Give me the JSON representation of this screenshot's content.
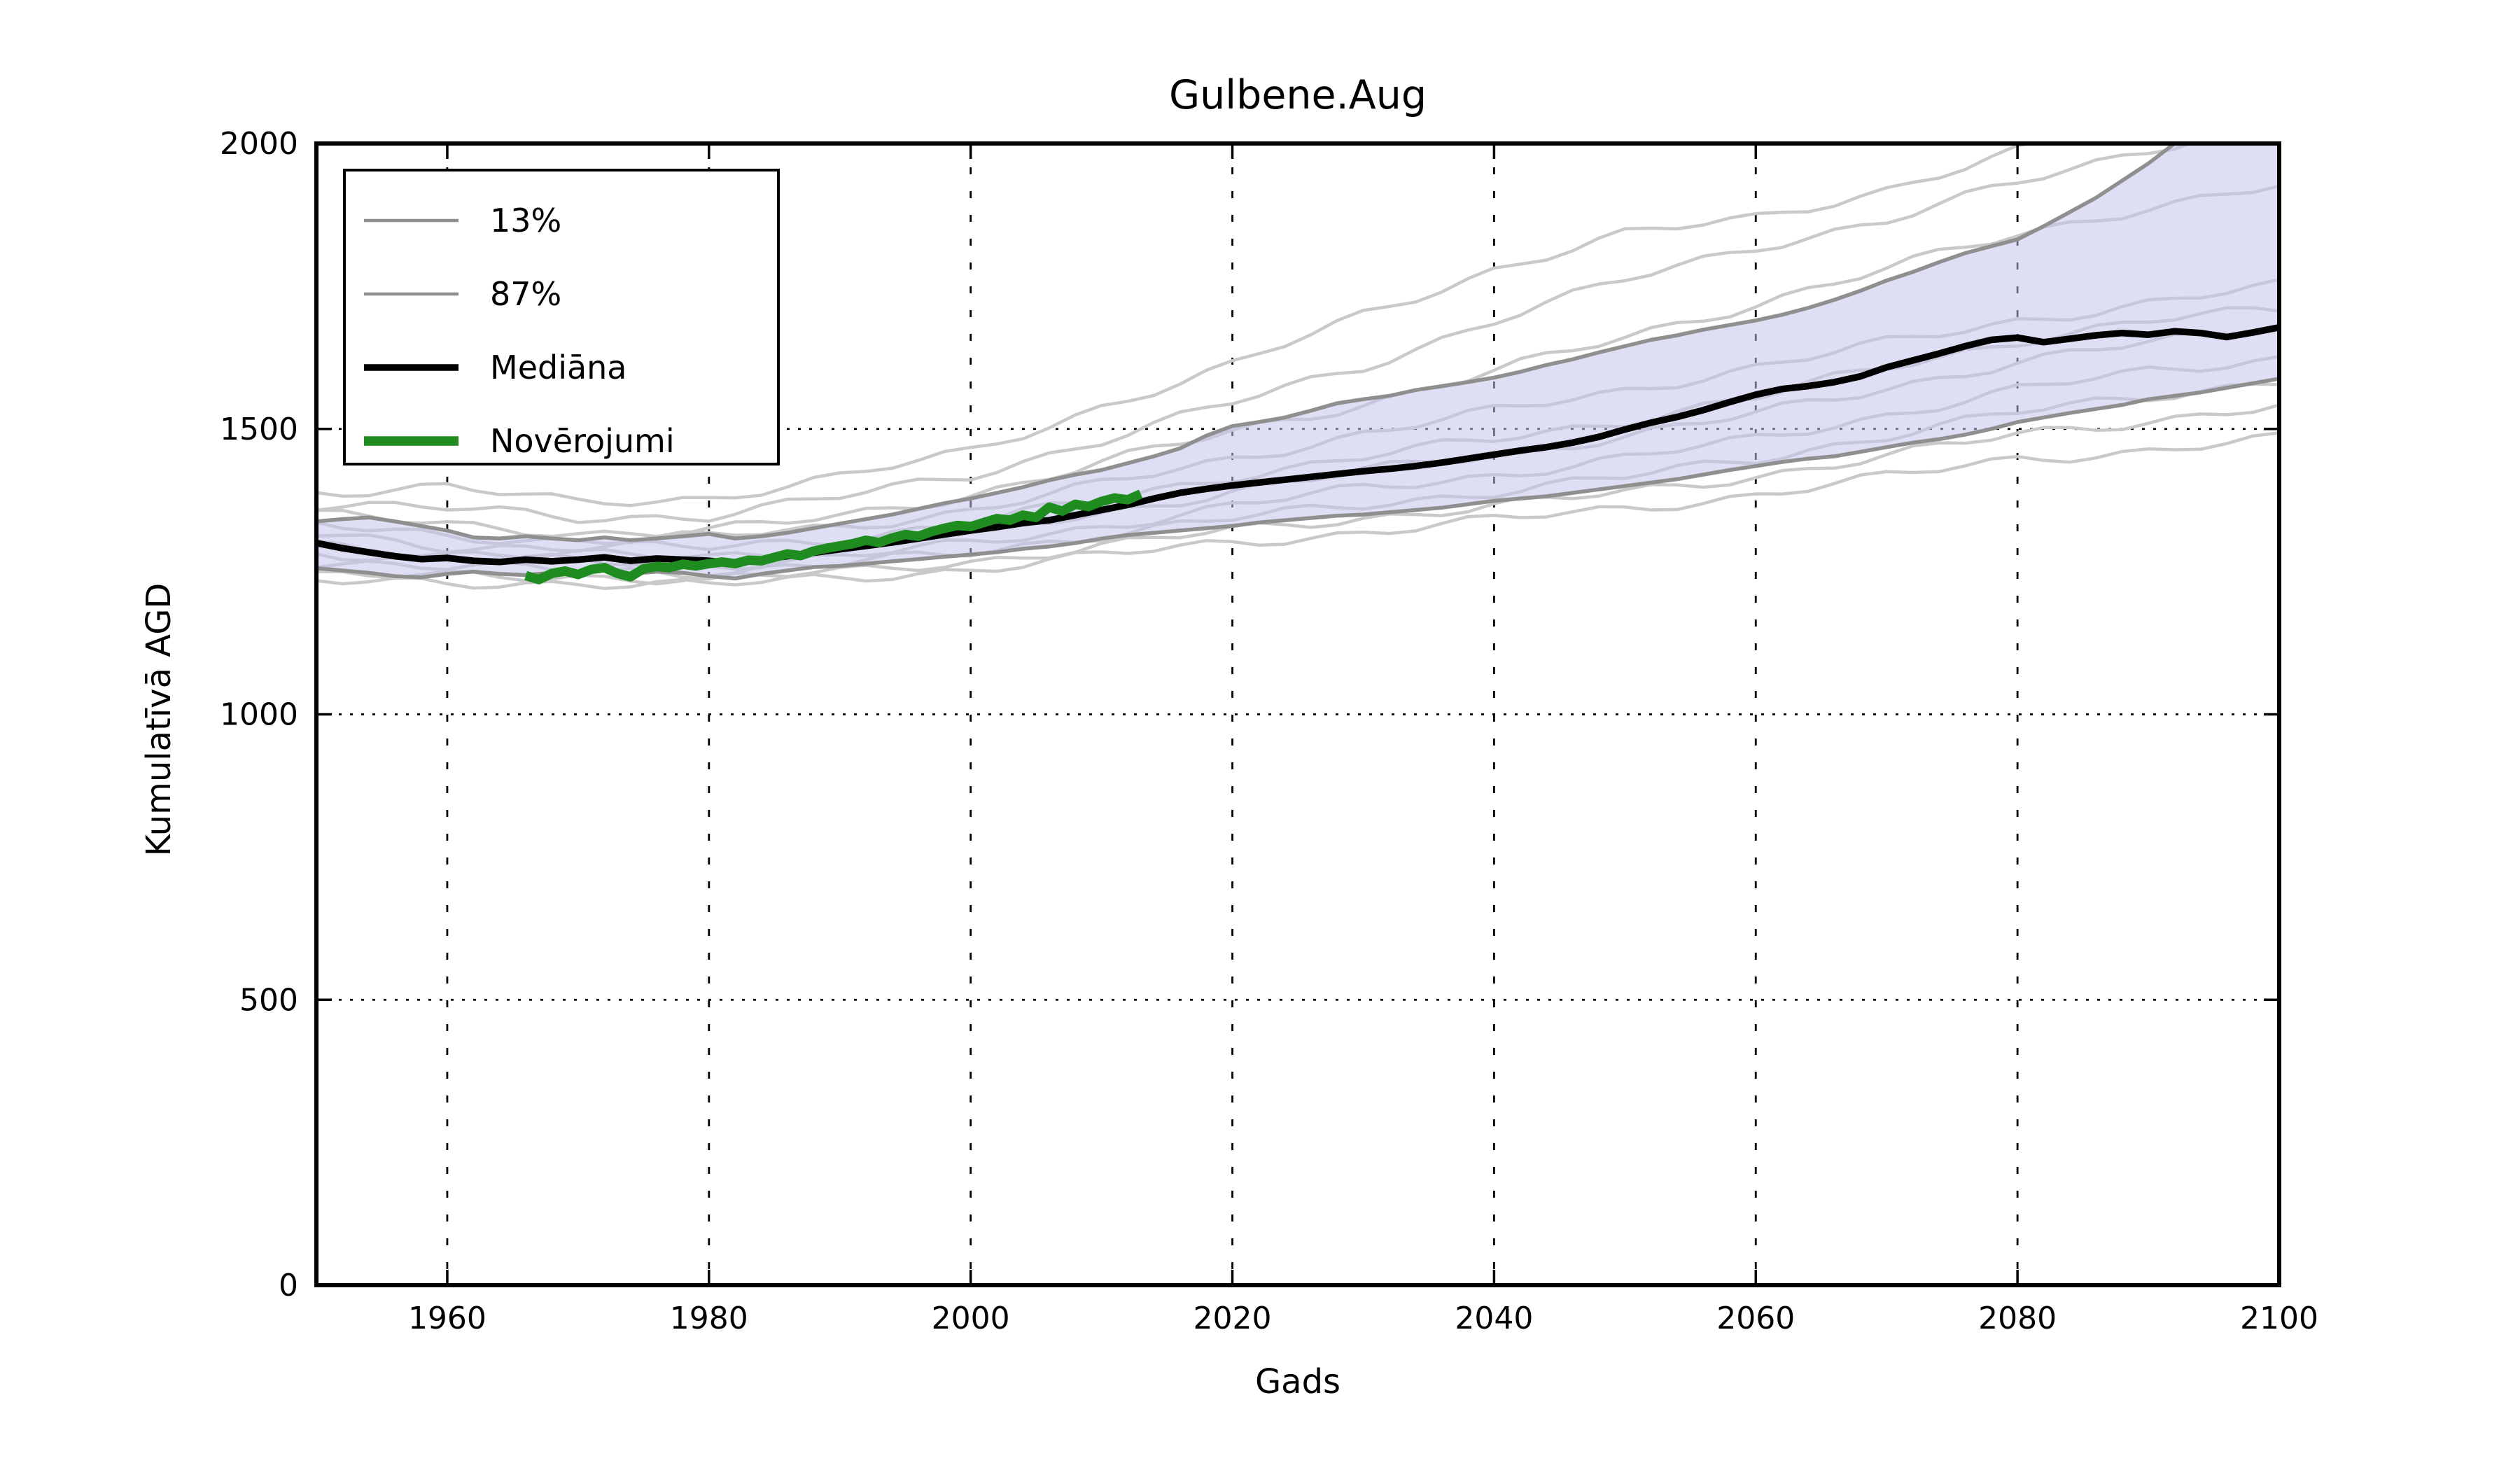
{
  "title": "Gulbene.Aug",
  "colors": {
    "median": "#000000",
    "observations": "#1e8c1e",
    "percentile_line": "#8f8f8f",
    "ensemble_line": "#c9c9c9",
    "band_fill": "#c3c3ec",
    "grid": "#000000",
    "frame": "#000000",
    "background": "#ffffff"
  },
  "legend": {
    "items": [
      {
        "label": "13%",
        "color": "#8f8f8f",
        "width": 4.5
      },
      {
        "label": "87%",
        "color": "#8f8f8f",
        "width": 4.5
      },
      {
        "label": "Mediāna",
        "color": "#000000",
        "width": 9.5
      },
      {
        "label": "Novērojumi",
        "color": "#1e8c1e",
        "width": 13.5
      }
    ]
  },
  "chart_data": {
    "type": "line",
    "title": "Gulbene.Aug",
    "xlabel": "Gads",
    "ylabel": "Kumulatīvā AGD",
    "xlim": [
      1950,
      2100
    ],
    "ylim": [
      0,
      2000
    ],
    "xticks": [
      1960,
      1980,
      2000,
      2020,
      2040,
      2060,
      2080,
      2100
    ],
    "yticks": [
      0,
      500,
      1000,
      1500,
      2000
    ],
    "grid": true,
    "legend_position": "upper-left",
    "band": {
      "lower_series": "13%",
      "upper_series": "87%",
      "fill": "#c3c3ec",
      "opacity": 0.55
    },
    "series": [
      {
        "name": "13%",
        "role": "percentile-low",
        "color": "#8f8f8f",
        "width": 5.5,
        "years": {
          "start": 1950,
          "end": 2100,
          "step": 2
        },
        "values": [
          1256,
          1252,
          1248,
          1242,
          1240,
          1246,
          1250,
          1246,
          1244,
          1248,
          1250,
          1252,
          1246,
          1250,
          1248,
          1242,
          1238,
          1246,
          1252,
          1258,
          1260,
          1264,
          1268,
          1272,
          1276,
          1280,
          1284,
          1290,
          1294,
          1300,
          1308,
          1314,
          1318,
          1322,
          1326,
          1330,
          1336,
          1340,
          1344,
          1348,
          1350,
          1354,
          1358,
          1362,
          1368,
          1374,
          1378,
          1382,
          1388,
          1394,
          1400,
          1406,
          1412,
          1420,
          1428,
          1435,
          1442,
          1448,
          1452,
          1460,
          1468,
          1476,
          1482,
          1490,
          1500,
          1512,
          1520,
          1528,
          1535,
          1542,
          1552,
          1558,
          1564,
          1572,
          1580,
          1588
        ]
      },
      {
        "name": "87%",
        "role": "percentile-high",
        "color": "#8f8f8f",
        "width": 5.5,
        "years": {
          "start": 1950,
          "end": 2100,
          "step": 2
        },
        "values": [
          1338,
          1342,
          1345,
          1338,
          1330,
          1322,
          1310,
          1308,
          1312,
          1308,
          1305,
          1310,
          1305,
          1308,
          1312,
          1316,
          1308,
          1312,
          1318,
          1326,
          1334,
          1342,
          1350,
          1360,
          1370,
          1378,
          1388,
          1398,
          1410,
          1420,
          1428,
          1440,
          1452,
          1466,
          1488,
          1505,
          1512,
          1520,
          1532,
          1545,
          1552,
          1558,
          1568,
          1575,
          1582,
          1590,
          1600,
          1612,
          1622,
          1634,
          1645,
          1656,
          1664,
          1674,
          1682,
          1690,
          1700,
          1712,
          1726,
          1742,
          1760,
          1775,
          1792,
          1808,
          1820,
          1832,
          1855,
          1880,
          1905,
          1935,
          1965,
          2000,
          2015,
          2030,
          2045,
          2060
        ]
      },
      {
        "name": "Mediāna",
        "role": "median",
        "color": "#000000",
        "width": 9.5,
        "years": {
          "start": 1950,
          "end": 2100,
          "step": 2
        },
        "values": [
          1300,
          1291,
          1284,
          1277,
          1272,
          1274,
          1269,
          1267,
          1271,
          1268,
          1271,
          1275,
          1269,
          1273,
          1271,
          1269,
          1264,
          1271,
          1277,
          1283,
          1289,
          1295,
          1301,
          1308,
          1315,
          1322,
          1328,
          1335,
          1340,
          1349,
          1358,
          1367,
          1378,
          1388,
          1395,
          1401,
          1406,
          1411,
          1416,
          1421,
          1426,
          1430,
          1435,
          1441,
          1448,
          1455,
          1462,
          1468,
          1476,
          1486,
          1499,
          1511,
          1521,
          1533,
          1547,
          1560,
          1570,
          1575,
          1582,
          1592,
          1608,
          1620,
          1632,
          1645,
          1656,
          1660,
          1652,
          1658,
          1664,
          1668,
          1665,
          1671,
          1668,
          1661,
          1669,
          1678
        ]
      },
      {
        "name": "Novērojumi",
        "role": "observations",
        "color": "#1e8c1e",
        "width": 13.5,
        "years": {
          "start": 1966,
          "end": 2013,
          "step": 1
        },
        "values": [
          1243,
          1236,
          1247,
          1251,
          1245,
          1254,
          1257,
          1247,
          1241,
          1255,
          1259,
          1257,
          1263,
          1260,
          1264,
          1267,
          1264,
          1270,
          1269,
          1275,
          1281,
          1278,
          1286,
          1291,
          1295,
          1299,
          1305,
          1301,
          1309,
          1315,
          1312,
          1320,
          1326,
          1331,
          1329,
          1336,
          1343,
          1340,
          1349,
          1345,
          1363,
          1356,
          1368,
          1364,
          1373,
          1379,
          1376,
          1386
        ]
      }
    ],
    "ensemble": {
      "color": "#c9c9c9",
      "width": 4.5,
      "years": {
        "start": 1950,
        "end": 2100,
        "step": 10
      },
      "members": [
        [
          1390,
          1398,
          1370,
          1380,
          1415,
          1460,
          1540,
          1610,
          1700,
          1780,
          1840,
          1870,
          1920,
          1985,
          2040,
          2060
        ],
        [
          1368,
          1360,
          1345,
          1348,
          1380,
          1420,
          1480,
          1545,
          1610,
          1690,
          1760,
          1820,
          1865,
          1930,
          1990,
          2050
        ],
        [
          1352,
          1330,
          1318,
          1322,
          1345,
          1385,
          1440,
          1495,
          1545,
          1600,
          1660,
          1720,
          1780,
          1840,
          1890,
          1925
        ],
        [
          1330,
          1312,
          1305,
          1310,
          1328,
          1358,
          1402,
          1448,
          1492,
          1530,
          1568,
          1608,
          1650,
          1690,
          1720,
          1750
        ],
        [
          1315,
          1295,
          1292,
          1292,
          1308,
          1335,
          1375,
          1418,
          1450,
          1482,
          1515,
          1555,
          1608,
          1655,
          1688,
          1710
        ],
        [
          1298,
          1282,
          1278,
          1276,
          1292,
          1318,
          1352,
          1392,
          1425,
          1455,
          1488,
          1525,
          1572,
          1618,
          1650,
          1680
        ],
        [
          1285,
          1270,
          1268,
          1262,
          1276,
          1298,
          1330,
          1365,
          1395,
          1420,
          1448,
          1482,
          1525,
          1568,
          1600,
          1625
        ],
        [
          1268,
          1256,
          1255,
          1248,
          1262,
          1285,
          1315,
          1342,
          1368,
          1390,
          1415,
          1448,
          1488,
          1528,
          1558,
          1585
        ],
        [
          1245,
          1240,
          1242,
          1238,
          1248,
          1268,
          1295,
          1322,
          1345,
          1365,
          1388,
          1418,
          1452,
          1490,
          1515,
          1540
        ],
        [
          1232,
          1228,
          1232,
          1226,
          1238,
          1255,
          1278,
          1300,
          1320,
          1340,
          1360,
          1385,
          1415,
          1448,
          1462,
          1482
        ]
      ]
    }
  }
}
